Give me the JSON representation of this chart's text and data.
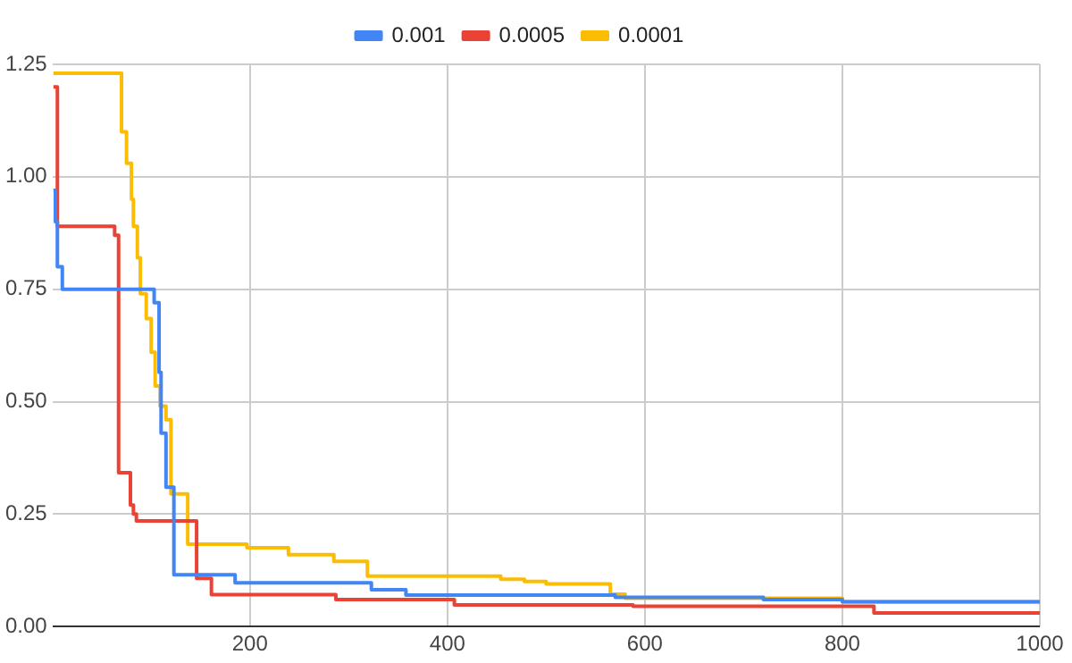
{
  "chart_data": {
    "type": "step",
    "xlim": [
      0,
      1000
    ],
    "xticks": [
      200,
      400,
      600,
      800,
      1000
    ],
    "ylim": [
      0,
      1.25
    ],
    "yticks": [
      {
        "value": 0,
        "label": "0.00"
      },
      {
        "value": 0.25,
        "label": "0.25"
      },
      {
        "value": 0.5,
        "label": "0.50"
      },
      {
        "value": 0.75,
        "label": "0.75"
      },
      {
        "value": 1,
        "label": "1.00"
      },
      {
        "value": 1.25,
        "label": "1.25"
      }
    ],
    "grid": true,
    "legend": "top",
    "series": [
      {
        "name": "0.001",
        "color": "#4285f4",
        "x": [
          1,
          3,
          5,
          10,
          103,
          108,
          110,
          111,
          115,
          123,
          185,
          323,
          358,
          570,
          720,
          800,
          1000
        ],
        "values": [
          0.97,
          0.9,
          0.8,
          0.75,
          0.72,
          0.565,
          0.43,
          0.43,
          0.31,
          0.115,
          0.097,
          0.082,
          0.07,
          0.065,
          0.06,
          0.055,
          0.055
        ]
      },
      {
        "name": "0.0005",
        "color": "#ea4335",
        "x": [
          1,
          5,
          63,
          67,
          79,
          82,
          85,
          146,
          161,
          287,
          407,
          588,
          832,
          1000
        ],
        "values": [
          1.2,
          0.89,
          0.87,
          0.342,
          0.27,
          0.25,
          0.235,
          0.107,
          0.071,
          0.06,
          0.048,
          0.045,
          0.03,
          0.03
        ]
      },
      {
        "name": "0.0001",
        "color": "#fbbc04",
        "x": [
          1,
          70,
          75,
          80,
          82,
          86,
          89,
          95,
          100,
          104,
          109,
          115,
          118,
          120,
          137,
          197,
          239,
          285,
          319,
          454,
          478,
          500,
          522,
          565,
          580,
          800,
          1000
        ],
        "values": [
          1.23,
          1.1,
          1.03,
          0.95,
          0.89,
          0.82,
          0.74,
          0.685,
          0.61,
          0.535,
          0.49,
          0.46,
          0.46,
          0.295,
          0.183,
          0.175,
          0.16,
          0.145,
          0.112,
          0.105,
          0.1,
          0.095,
          0.095,
          0.072,
          0.063,
          0.055,
          0.05
        ]
      }
    ]
  }
}
